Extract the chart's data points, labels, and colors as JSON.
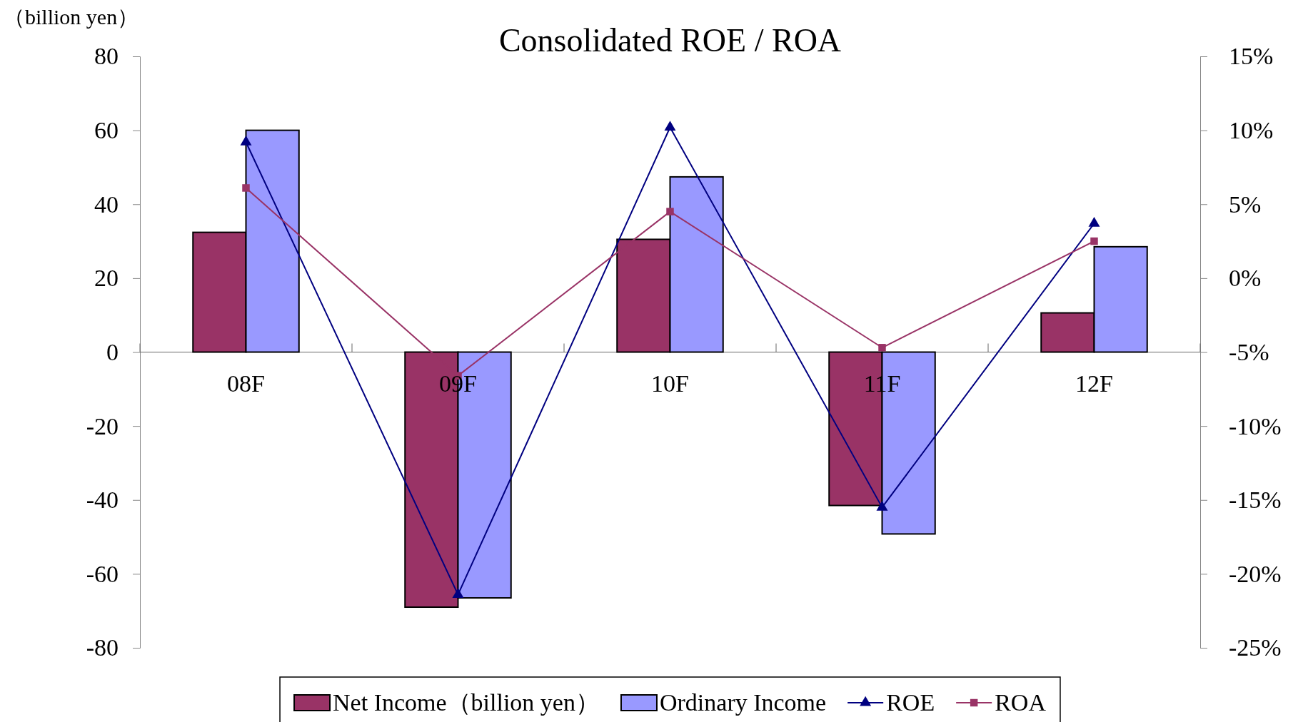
{
  "chart_data": {
    "type": "bar",
    "title": "Consolidated ROE / ROA",
    "ylabel": "（billion yen）",
    "categories": [
      "08F",
      "09F",
      "10F",
      "11F",
      "12F"
    ],
    "series": [
      {
        "name": "Net Income（billion yen）",
        "color": "#993366",
        "values": [
          32.4,
          -69,
          30.5,
          -41.5,
          10.6
        ]
      },
      {
        "name": "Ordinary Income",
        "color": "#9999ff",
        "values": [
          60,
          -66.5,
          47.4,
          -49.2,
          28.5
        ]
      },
      {
        "name": "ROE",
        "type": "line",
        "axis": "y2",
        "color": "#000080",
        "marker": "triangle",
        "values": [
          9.2,
          -21.4,
          10.2,
          -15.5,
          3.7
        ]
      },
      {
        "name": "ROA",
        "type": "line",
        "axis": "y2",
        "color": "#993366",
        "marker": "square",
        "values": [
          6.1,
          -6.6,
          4.5,
          -4.7,
          2.5
        ]
      }
    ],
    "ylim": [
      -80,
      80
    ],
    "yticks": [
      -80,
      -60,
      -40,
      -20,
      0,
      20,
      40,
      60,
      80
    ],
    "y2lim": [
      -25,
      15
    ],
    "y2ticks": [
      {
        "value": -25,
        "label": "-25%"
      },
      {
        "value": -20,
        "label": "-20%"
      },
      {
        "value": -15,
        "label": "-15%"
      },
      {
        "value": -10,
        "label": "-10%"
      },
      {
        "value": -5,
        "label": "-5%"
      },
      {
        "value": 0,
        "label": "0%"
      },
      {
        "value": 5,
        "label": "5%"
      },
      {
        "value": 10,
        "label": "10%"
      },
      {
        "value": 15,
        "label": "15%"
      }
    ],
    "grid": false,
    "legend": "bottom"
  }
}
